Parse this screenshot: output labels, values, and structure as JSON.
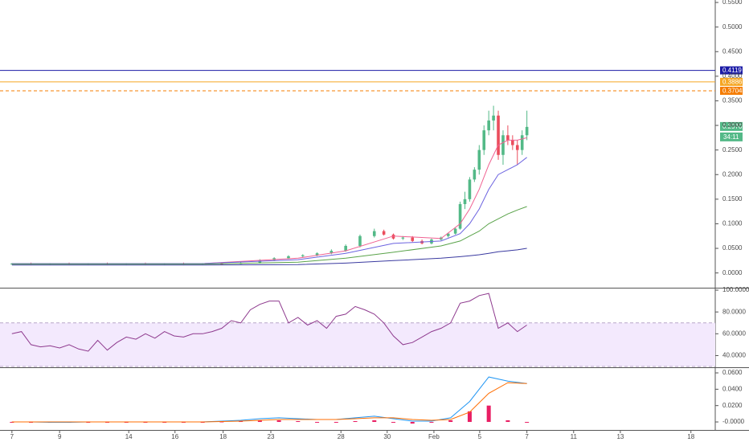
{
  "chart_data": [
    {
      "type": "candlestick",
      "xlim": [
        -2.5,
        147.5
      ],
      "ylim": [
        -0.03,
        0.555
      ],
      "yticks": [
        {
          "value": 0,
          "label": "0.0000"
        },
        {
          "value": 0.05,
          "label": "0.0500"
        },
        {
          "value": 0.1,
          "label": "0.1000"
        },
        {
          "value": 0.15,
          "label": "0.1500"
        },
        {
          "value": 0.2,
          "label": "0.2000"
        },
        {
          "value": 0.25,
          "label": "0.2500"
        },
        {
          "value": 0.3,
          "label": "0.3000"
        },
        {
          "value": 0.35,
          "label": "0.3500"
        },
        {
          "value": 0.4,
          "label": "0.4000"
        },
        {
          "value": 0.45,
          "label": "0.4500"
        },
        {
          "value": 0.5,
          "label": "0.5000"
        },
        {
          "value": 0.55,
          "label": "0.5500"
        }
      ],
      "up_color": "#53b987",
      "down_color": "#eb4d5c",
      "x": [
        0,
        4,
        8,
        12,
        16,
        20,
        24,
        28,
        32,
        36,
        40,
        44,
        48,
        52,
        55,
        58,
        61,
        64,
        67,
        70,
        73,
        76,
        78,
        80,
        82,
        84,
        86,
        88,
        90,
        91.5,
        93,
        94,
        95,
        96,
        97,
        98,
        99,
        100,
        101,
        102,
        103,
        104,
        105,
        106,
        107,
        108
      ],
      "open": [
        0.018,
        0.019,
        0.018,
        0.019,
        0.018,
        0.019,
        0.018,
        0.019,
        0.018,
        0.019,
        0.018,
        0.019,
        0.019,
        0.02,
        0.026,
        0.03,
        0.034,
        0.036,
        0.04,
        0.045,
        0.055,
        0.075,
        0.085,
        0.078,
        0.07,
        0.072,
        0.065,
        0.06,
        0.068,
        0.075,
        0.08,
        0.09,
        0.14,
        0.15,
        0.19,
        0.21,
        0.25,
        0.29,
        0.31,
        0.32,
        0.24,
        0.28,
        0.27,
        0.26,
        0.25,
        0.28
      ],
      "high": [
        0.02,
        0.021,
        0.02,
        0.021,
        0.02,
        0.021,
        0.02,
        0.021,
        0.02,
        0.021,
        0.02,
        0.021,
        0.022,
        0.028,
        0.032,
        0.036,
        0.038,
        0.042,
        0.048,
        0.058,
        0.078,
        0.09,
        0.088,
        0.08,
        0.075,
        0.075,
        0.068,
        0.07,
        0.074,
        0.082,
        0.092,
        0.145,
        0.165,
        0.195,
        0.215,
        0.26,
        0.3,
        0.33,
        0.34,
        0.33,
        0.29,
        0.3,
        0.28,
        0.27,
        0.29,
        0.33
      ],
      "low": [
        0.017,
        0.017,
        0.017,
        0.017,
        0.017,
        0.017,
        0.017,
        0.017,
        0.017,
        0.017,
        0.017,
        0.017,
        0.018,
        0.019,
        0.024,
        0.028,
        0.032,
        0.034,
        0.038,
        0.043,
        0.052,
        0.072,
        0.076,
        0.068,
        0.067,
        0.063,
        0.058,
        0.058,
        0.066,
        0.072,
        0.078,
        0.088,
        0.13,
        0.145,
        0.185,
        0.2,
        0.24,
        0.28,
        0.29,
        0.23,
        0.22,
        0.26,
        0.25,
        0.22,
        0.24,
        0.27
      ],
      "close": [
        0.019,
        0.018,
        0.019,
        0.018,
        0.019,
        0.018,
        0.019,
        0.018,
        0.019,
        0.018,
        0.019,
        0.018,
        0.02,
        0.026,
        0.03,
        0.034,
        0.036,
        0.04,
        0.045,
        0.055,
        0.075,
        0.085,
        0.078,
        0.07,
        0.072,
        0.065,
        0.06,
        0.068,
        0.072,
        0.08,
        0.09,
        0.14,
        0.15,
        0.19,
        0.21,
        0.25,
        0.29,
        0.31,
        0.32,
        0.24,
        0.28,
        0.27,
        0.26,
        0.25,
        0.28,
        0.297
      ],
      "series": [
        {
          "color": "#f06292",
          "x": [
            0,
            40,
            60,
            70,
            80,
            90,
            94,
            96,
            98,
            100,
            102,
            104,
            106,
            108
          ],
          "values": [
            0.019,
            0.019,
            0.03,
            0.045,
            0.075,
            0.07,
            0.1,
            0.13,
            0.17,
            0.22,
            0.26,
            0.27,
            0.27,
            0.275
          ]
        },
        {
          "color": "#6c63e0",
          "x": [
            0,
            40,
            60,
            70,
            80,
            90,
            94,
            96,
            98,
            100,
            102,
            104,
            106,
            108
          ],
          "values": [
            0.019,
            0.019,
            0.027,
            0.04,
            0.06,
            0.065,
            0.08,
            0.1,
            0.13,
            0.17,
            0.2,
            0.21,
            0.22,
            0.235
          ]
        },
        {
          "color": "#5aa34a",
          "x": [
            0,
            40,
            60,
            70,
            80,
            90,
            94,
            96,
            98,
            100,
            102,
            104,
            106,
            108
          ],
          "values": [
            0.018,
            0.018,
            0.022,
            0.03,
            0.042,
            0.055,
            0.065,
            0.075,
            0.085,
            0.1,
            0.11,
            0.12,
            0.128,
            0.135
          ]
        },
        {
          "color": "#3a3aa0",
          "x": [
            0,
            40,
            60,
            70,
            80,
            90,
            94,
            96,
            98,
            100,
            102,
            104,
            106,
            108
          ],
          "values": [
            0.016,
            0.016,
            0.017,
            0.02,
            0.025,
            0.03,
            0.033,
            0.035,
            0.037,
            0.04,
            0.043,
            0.045,
            0.047,
            0.05
          ]
        }
      ],
      "levels": [
        {
          "value": 0.4119,
          "label": "0.4119",
          "color": "#1a1aa6",
          "dashed": false
        },
        {
          "value": 0.3886,
          "label": "0.3886",
          "color": "#f5a623",
          "dashed": false
        },
        {
          "value": 0.3704,
          "label": "0.3704",
          "color": "#f57c00",
          "dashed": true
        }
      ],
      "last_price": {
        "value": 0.297,
        "label": "0.2970"
      },
      "countdown": "34:11"
    },
    {
      "type": "line",
      "xlim": [
        -2.5,
        147.5
      ],
      "ylim": [
        29.3,
        101.5
      ],
      "yticks": [
        {
          "value": 40,
          "label": "40.0000"
        },
        {
          "value": 60,
          "label": "60.0000"
        },
        {
          "value": 80,
          "label": "80.0000"
        },
        {
          "value": 100,
          "label": "100.0000"
        }
      ],
      "band": [
        30,
        70
      ],
      "band_color": "#f3e9fd",
      "series": [
        {
          "color": "#8e3a8e",
          "x": [
            0,
            2,
            4,
            6,
            8,
            10,
            12,
            14,
            16,
            18,
            20,
            22,
            24,
            26,
            28,
            30,
            32,
            34,
            36,
            38,
            40,
            42,
            44,
            46,
            48,
            50,
            52,
            54,
            56,
            58,
            60,
            62,
            64,
            66,
            68,
            70,
            72,
            74,
            76,
            78,
            80,
            82,
            84,
            86,
            88,
            90,
            92,
            94,
            96,
            98,
            100,
            102,
            104,
            106,
            108
          ],
          "values": [
            60,
            62,
            50,
            48,
            49,
            47,
            50,
            46,
            44,
            54,
            45,
            52,
            57,
            55,
            60,
            56,
            62,
            58,
            57,
            60,
            60,
            62,
            65,
            72,
            70,
            82,
            87,
            90,
            90,
            70,
            75,
            68,
            72,
            65,
            76,
            78,
            85,
            82,
            78,
            70,
            58,
            50,
            52,
            57,
            62,
            65,
            70,
            88,
            90,
            95,
            97,
            65,
            70,
            62,
            68
          ]
        }
      ]
    },
    {
      "type": "macd",
      "xlim": [
        -2.5,
        147.5
      ],
      "ylim": [
        -0.0098,
        0.0659
      ],
      "yticks": [
        {
          "value": 0,
          "label": "-0.0000"
        },
        {
          "value": 0.02,
          "label": "0.0200"
        },
        {
          "value": 0.04,
          "label": "0.0400"
        },
        {
          "value": 0.06,
          "label": "0.0600"
        }
      ],
      "xticks": [
        {
          "value": 0,
          "label": "7"
        },
        {
          "value": 10,
          "label": "9"
        },
        {
          "value": 24.5,
          "label": "14"
        },
        {
          "value": 34.2,
          "label": "16"
        },
        {
          "value": 44.3,
          "label": "18"
        },
        {
          "value": 54.3,
          "label": "23"
        },
        {
          "value": 69,
          "label": "28"
        },
        {
          "value": 78.7,
          "label": "30"
        },
        {
          "value": 88.5,
          "label": "Feb"
        },
        {
          "value": 98.1,
          "label": "5"
        },
        {
          "value": 108,
          "label": "7"
        },
        {
          "value": 117.8,
          "label": "11"
        },
        {
          "value": 127.6,
          "label": "13"
        },
        {
          "value": 142.4,
          "label": "18"
        }
      ],
      "x": [
        0,
        4,
        8,
        12,
        16,
        20,
        24,
        28,
        32,
        36,
        40,
        44,
        48,
        52,
        56,
        60,
        64,
        68,
        72,
        76,
        80,
        84,
        88,
        92,
        96,
        100,
        104,
        108
      ],
      "histogram": {
        "color": "#e91e63",
        "values": [
          0,
          0,
          -0.0005,
          -0.0005,
          0,
          0,
          0,
          0,
          0,
          0,
          0,
          0.0005,
          0.001,
          0.002,
          0.002,
          0.001,
          0,
          0,
          0.001,
          0.002,
          -0.001,
          -0.002,
          -0.001,
          0.002,
          0.013,
          0.02,
          0.002,
          -0.0005
        ]
      },
      "series": [
        {
          "color": "#2196f3",
          "values": [
            0,
            0,
            -0.0005,
            -0.0005,
            0,
            0,
            0,
            0,
            0,
            0,
            0,
            0.001,
            0.002,
            0.004,
            0.005,
            0.004,
            0.003,
            0.003,
            0.005,
            0.007,
            0.004,
            0.001,
            0.001,
            0.005,
            0.025,
            0.055,
            0.05,
            0.047
          ]
        },
        {
          "color": "#ff6d00",
          "values": [
            0,
            0,
            0,
            0,
            0,
            0,
            0,
            0,
            0,
            0,
            0,
            0.0005,
            0.001,
            0.002,
            0.003,
            0.003,
            0.003,
            0.003,
            0.004,
            0.005,
            0.005,
            0.003,
            0.002,
            0.003,
            0.012,
            0.035,
            0.048,
            0.047
          ]
        }
      ]
    }
  ]
}
